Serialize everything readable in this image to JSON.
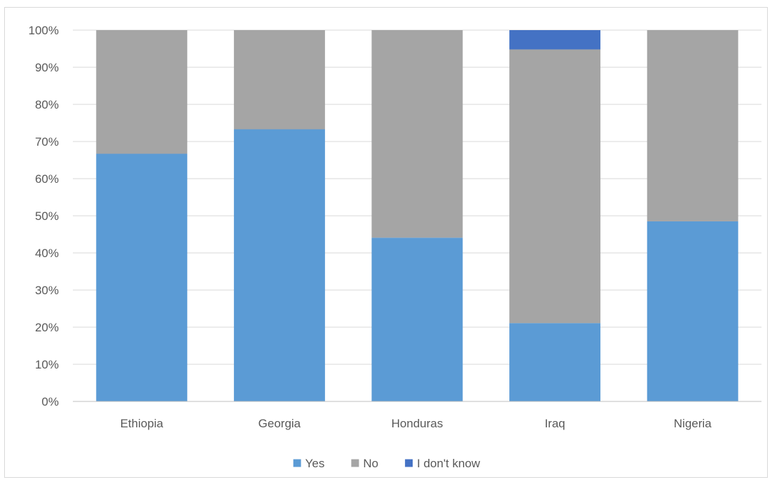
{
  "chart_data": {
    "type": "bar",
    "stacked": true,
    "percent_stacked": true,
    "categories": [
      "Ethiopia",
      "Georgia",
      "Honduras",
      "Iraq",
      "Nigeria"
    ],
    "series": [
      {
        "name": "Yes",
        "color": "#5b9bd5",
        "values": [
          66.7,
          73.3,
          44.1,
          21.1,
          48.5
        ]
      },
      {
        "name": "No",
        "color": "#a5a5a5",
        "values": [
          33.3,
          26.7,
          55.9,
          73.7,
          51.5
        ]
      },
      {
        "name": "I don't know",
        "color": "#4472c4",
        "values": [
          0,
          0,
          0,
          5.2,
          0
        ]
      }
    ],
    "y_ticks": [
      "0%",
      "10%",
      "20%",
      "30%",
      "40%",
      "50%",
      "60%",
      "70%",
      "80%",
      "90%",
      "100%"
    ],
    "ylim": [
      0,
      100
    ],
    "grid": true,
    "legend_position": "bottom",
    "title": "",
    "xlabel": "",
    "ylabel": ""
  }
}
